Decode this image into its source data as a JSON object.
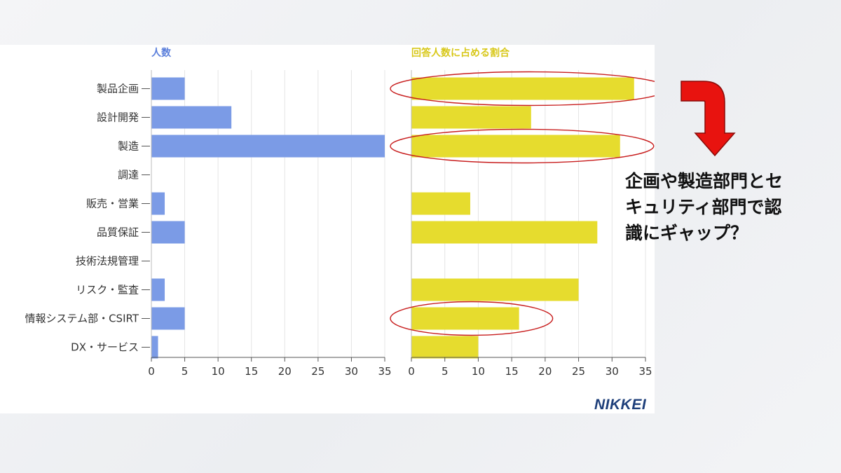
{
  "chart_data": [
    {
      "type": "bar",
      "orientation": "horizontal",
      "title": "人数",
      "categories": [
        "製品企画",
        "設計開発",
        "製造",
        "調達",
        "販売・営業",
        "品質保証",
        "技術法規管理",
        "リスク・監査",
        "情報システム部・CSIRT",
        "DX・サービス"
      ],
      "values": [
        5,
        12,
        35,
        0,
        2,
        5,
        0,
        2,
        5,
        1
      ],
      "xlim": [
        0,
        35
      ],
      "xticks": [
        "0",
        "5",
        "10",
        "15",
        "20",
        "25",
        "30",
        "35"
      ],
      "color": "#7b9be6",
      "grid": true
    },
    {
      "type": "bar",
      "orientation": "horizontal",
      "title": "回答人数に占める割合",
      "categories": [
        "製品企画",
        "設計開発",
        "製造",
        "調達",
        "販売・営業",
        "品質保証",
        "技術法規管理",
        "リスク・監査",
        "情報システム部・CSIRT",
        "DX・サービス"
      ],
      "values": [
        33.3,
        17.9,
        31.2,
        0,
        8.8,
        27.8,
        0,
        25,
        16.1,
        10
      ],
      "xlim": [
        0,
        35
      ],
      "xticks": [
        "0",
        "5",
        "10",
        "15",
        "20",
        "25",
        "30",
        "35"
      ],
      "color": "#e6dc2e",
      "grid": true,
      "highlighted": [
        "製品企画",
        "製造",
        "情報システム部・CSIRT"
      ],
      "highlight_color": "#c81e1e"
    }
  ],
  "brand": {
    "logo_text": "NIKKEI"
  },
  "annotation": {
    "lines": [
      "企画や製造部門とセ",
      "キュリティ部門で認",
      "識にギャップ？"
    ],
    "arrow_color": "#e8130f"
  }
}
